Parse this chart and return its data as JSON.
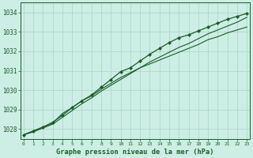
{
  "xlabel": "Graphe pression niveau de la mer (hPa)",
  "x_ticks": [
    0,
    1,
    2,
    3,
    4,
    5,
    6,
    7,
    8,
    9,
    10,
    11,
    12,
    13,
    14,
    15,
    16,
    17,
    18,
    19,
    20,
    21,
    22,
    23
  ],
  "ylim": [
    1027.5,
    1034.5
  ],
  "yticks": [
    1028,
    1029,
    1030,
    1031,
    1032,
    1033,
    1034
  ],
  "xlim": [
    -0.3,
    23.3
  ],
  "bg_color": "#cceee4",
  "grid_color": "#aad4c8",
  "line_color": "#1a5c2a",
  "series_main": [
    1027.7,
    1027.9,
    1028.1,
    1028.3,
    1028.8,
    1029.1,
    1029.45,
    1029.7,
    1030.05,
    1030.35,
    1030.65,
    1030.9,
    1031.15,
    1031.35,
    1031.55,
    1031.75,
    1031.95,
    1032.15,
    1032.35,
    1032.6,
    1032.75,
    1032.95,
    1033.1,
    1033.25
  ],
  "series_high": [
    1027.7,
    1027.85,
    1028.05,
    1028.25,
    1028.6,
    1028.95,
    1029.3,
    1029.6,
    1029.95,
    1030.25,
    1030.55,
    1030.85,
    1031.15,
    1031.45,
    1031.7,
    1031.95,
    1032.2,
    1032.4,
    1032.65,
    1032.9,
    1033.1,
    1033.3,
    1033.5,
    1033.75
  ],
  "series_marked": [
    1027.7,
    1027.9,
    1028.1,
    1028.35,
    1028.7,
    1029.1,
    1029.45,
    1029.75,
    1030.15,
    1030.55,
    1030.95,
    1031.15,
    1031.5,
    1031.85,
    1032.15,
    1032.45,
    1032.7,
    1032.85,
    1033.05,
    1033.25,
    1033.45,
    1033.65,
    1033.8,
    1033.95
  ]
}
